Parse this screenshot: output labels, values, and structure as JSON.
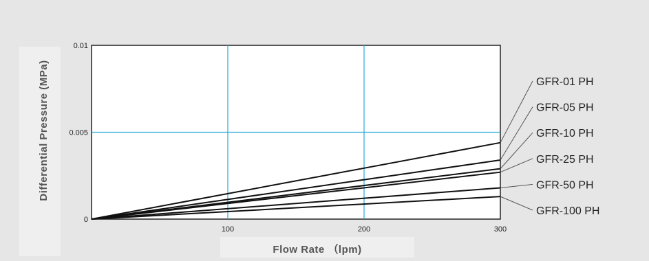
{
  "chart_data": {
    "type": "line",
    "xlabel": "Flow Rate （lpm)",
    "ylabel": "Differential Pressure (MPa)",
    "xlim": [
      0,
      300
    ],
    "ylim": [
      0,
      0.01
    ],
    "x_ticks": [
      "100",
      "200",
      "300"
    ],
    "y_ticks": [
      "0",
      "0.005",
      "0.01"
    ],
    "grid": true,
    "grid_color": "#29a8d8",
    "legend_placement": "right",
    "series": [
      {
        "name": "GFR-01 PH",
        "x": [
          0,
          300
        ],
        "y": [
          0,
          0.0044
        ]
      },
      {
        "name": "GFR-05 PH",
        "x": [
          0,
          300
        ],
        "y": [
          0,
          0.0034
        ]
      },
      {
        "name": "GFR-10 PH",
        "x": [
          0,
          300
        ],
        "y": [
          0,
          0.0029
        ]
      },
      {
        "name": "GFR-25 PH",
        "x": [
          0,
          300
        ],
        "y": [
          0,
          0.0027
        ]
      },
      {
        "name": "GFR-50 PH",
        "x": [
          0,
          300
        ],
        "y": [
          0,
          0.0018
        ]
      },
      {
        "name": "GFR-100 PH",
        "x": [
          0,
          300
        ],
        "y": [
          0,
          0.0013
        ]
      }
    ]
  }
}
